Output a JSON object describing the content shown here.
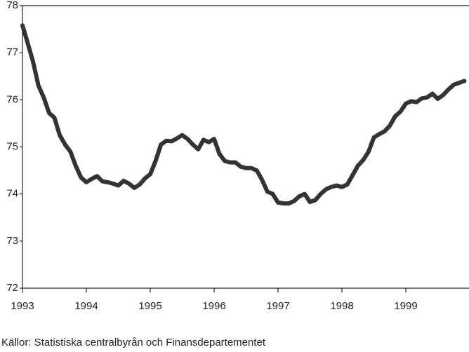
{
  "chart_data": {
    "type": "line",
    "source": "Källor: Statistiska centralbyrån och Finansdepartementet",
    "x": [
      1993,
      1993.083,
      1993.167,
      1993.25,
      1993.333,
      1993.417,
      1993.5,
      1993.583,
      1993.667,
      1993.75,
      1993.833,
      1993.917,
      1994,
      1994.083,
      1994.167,
      1994.25,
      1994.333,
      1994.417,
      1994.5,
      1994.583,
      1994.667,
      1994.75,
      1994.833,
      1994.917,
      1995,
      1995.083,
      1995.167,
      1995.25,
      1995.333,
      1995.417,
      1995.5,
      1995.583,
      1995.667,
      1995.75,
      1995.833,
      1995.917,
      1996,
      1996.083,
      1996.167,
      1996.25,
      1996.333,
      1996.417,
      1996.5,
      1996.583,
      1996.667,
      1996.75,
      1996.833,
      1996.917,
      1997,
      1997.083,
      1997.167,
      1997.25,
      1997.333,
      1997.417,
      1997.5,
      1997.583,
      1997.667,
      1997.75,
      1997.833,
      1997.917,
      1998,
      1998.083,
      1998.167,
      1998.25,
      1998.333,
      1998.417,
      1998.5,
      1998.583,
      1998.667,
      1998.75,
      1998.833,
      1998.917,
      1999,
      1999.083,
      1999.167,
      1999.25,
      1999.333,
      1999.417,
      1999.5,
      1999.583,
      1999.667,
      1999.75,
      1999.833,
      1999.917
    ],
    "series": [
      {
        "color": "#333333",
        "values": [
          77.58,
          77.2,
          76.8,
          76.3,
          76.05,
          75.72,
          75.62,
          75.25,
          75.05,
          74.9,
          74.6,
          74.35,
          74.25,
          74.32,
          74.38,
          74.27,
          74.25,
          74.22,
          74.18,
          74.28,
          74.22,
          74.13,
          74.2,
          74.33,
          74.42,
          74.7,
          75.05,
          75.13,
          75.12,
          75.18,
          75.25,
          75.17,
          75.05,
          74.95,
          75.15,
          75.1,
          75.17,
          74.85,
          74.7,
          74.67,
          74.67,
          74.58,
          74.55,
          74.55,
          74.5,
          74.3,
          74.05,
          74.0,
          73.82,
          73.8,
          73.8,
          73.85,
          73.95,
          74.0,
          73.83,
          73.87,
          74.0,
          74.1,
          74.15,
          74.18,
          74.15,
          74.2,
          74.4,
          74.6,
          74.72,
          74.9,
          75.2,
          75.27,
          75.33,
          75.45,
          75.65,
          75.75,
          75.92,
          75.97,
          75.95,
          76.03,
          76.05,
          76.13,
          76.02,
          76.1,
          76.22,
          76.32,
          76.36,
          76.4
        ]
      }
    ],
    "xlim": [
      1993,
      2000
    ],
    "xticks": [
      1993,
      1994,
      1995,
      1996,
      1997,
      1998,
      1999
    ],
    "ylim": [
      72,
      78
    ],
    "yticks": [
      72,
      73,
      74,
      75,
      76,
      77,
      78
    ],
    "grid": false
  }
}
